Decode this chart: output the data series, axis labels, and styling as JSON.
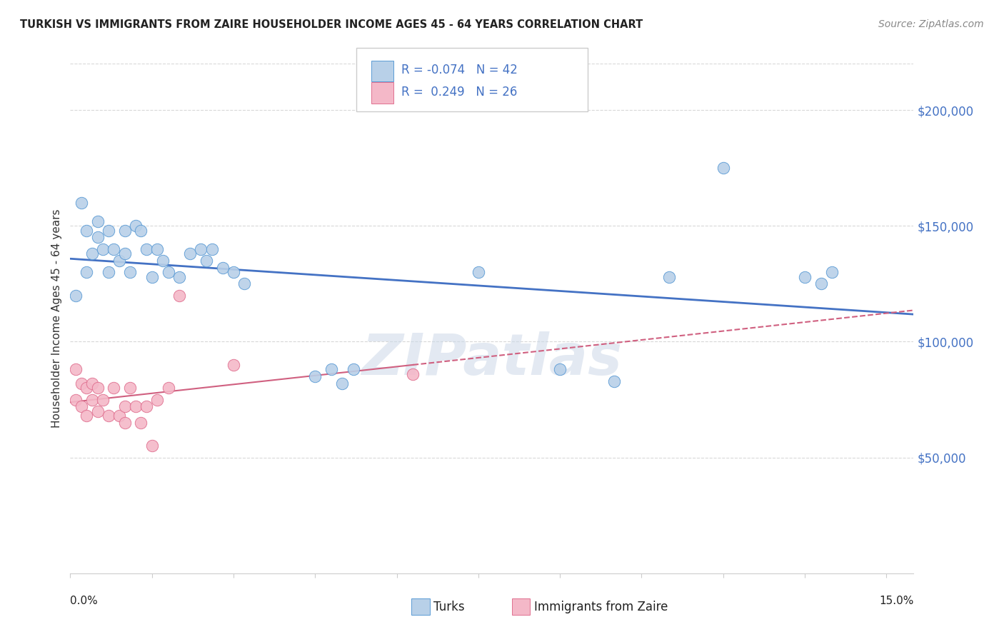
{
  "title": "TURKISH VS IMMIGRANTS FROM ZAIRE HOUSEHOLDER INCOME AGES 45 - 64 YEARS CORRELATION CHART",
  "source": "Source: ZipAtlas.com",
  "ylabel": "Householder Income Ages 45 - 64 years",
  "ytick_values": [
    50000,
    100000,
    150000,
    200000
  ],
  "ytick_labels": [
    "$50,000",
    "$100,000",
    "$150,000",
    "$200,000"
  ],
  "ylim": [
    0,
    220000
  ],
  "xlim": [
    0.0,
    0.155
  ],
  "legend_line1": "R = -0.074   N = 42",
  "legend_line2": "R =  0.249   N = 26",
  "blue_fill": "#b8d0e8",
  "blue_edge": "#5b9bd5",
  "blue_line": "#4472c4",
  "pink_fill": "#f4b8c8",
  "pink_edge": "#e07090",
  "pink_line": "#d06080",
  "grid_color": "#d8d8d8",
  "watermark": "ZIPatlas",
  "turks_x": [
    0.001,
    0.002,
    0.003,
    0.003,
    0.004,
    0.005,
    0.005,
    0.006,
    0.007,
    0.007,
    0.008,
    0.009,
    0.01,
    0.01,
    0.011,
    0.012,
    0.013,
    0.014,
    0.015,
    0.016,
    0.017,
    0.018,
    0.02,
    0.022,
    0.024,
    0.025,
    0.026,
    0.028,
    0.03,
    0.032,
    0.045,
    0.048,
    0.05,
    0.052,
    0.075,
    0.09,
    0.1,
    0.11,
    0.12,
    0.135,
    0.138,
    0.14
  ],
  "turks_y": [
    120000,
    160000,
    148000,
    130000,
    138000,
    145000,
    152000,
    140000,
    148000,
    130000,
    140000,
    135000,
    148000,
    138000,
    130000,
    150000,
    148000,
    140000,
    128000,
    140000,
    135000,
    130000,
    128000,
    138000,
    140000,
    135000,
    140000,
    132000,
    130000,
    125000,
    85000,
    88000,
    82000,
    88000,
    130000,
    88000,
    83000,
    128000,
    175000,
    128000,
    125000,
    130000
  ],
  "zaire_x": [
    0.001,
    0.001,
    0.002,
    0.002,
    0.003,
    0.003,
    0.004,
    0.004,
    0.005,
    0.005,
    0.006,
    0.007,
    0.008,
    0.009,
    0.01,
    0.01,
    0.011,
    0.012,
    0.013,
    0.014,
    0.015,
    0.016,
    0.018,
    0.02,
    0.03,
    0.063
  ],
  "zaire_y": [
    88000,
    75000,
    72000,
    82000,
    68000,
    80000,
    75000,
    82000,
    70000,
    80000,
    75000,
    68000,
    80000,
    68000,
    72000,
    65000,
    80000,
    72000,
    65000,
    72000,
    55000,
    75000,
    80000,
    120000,
    90000,
    86000
  ]
}
